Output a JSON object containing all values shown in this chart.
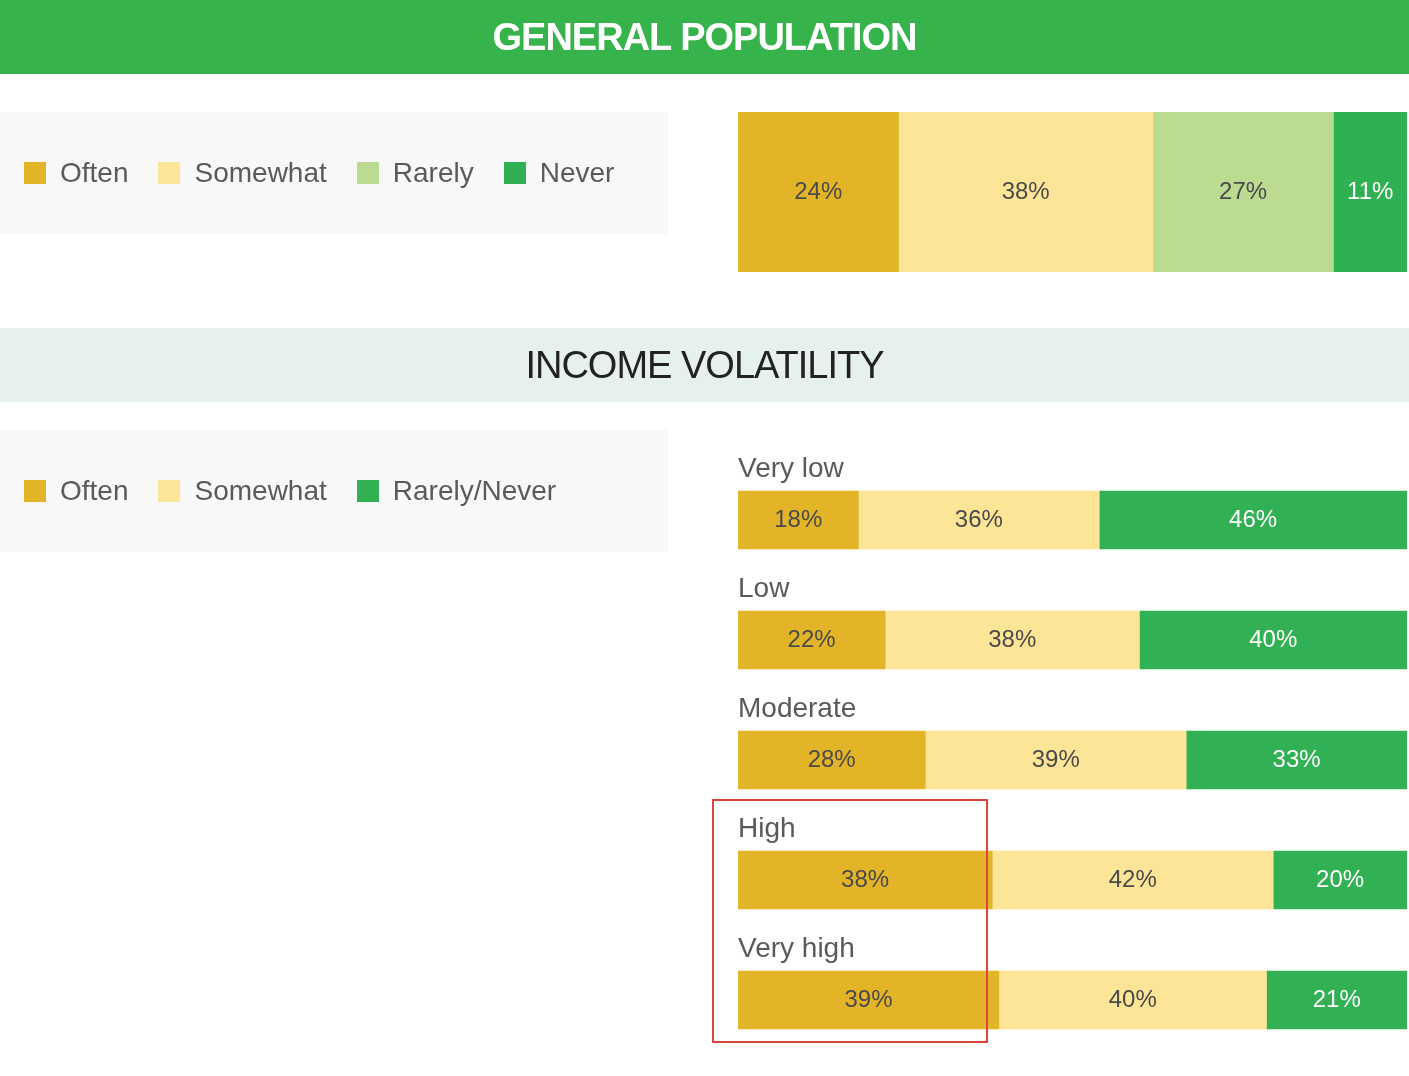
{
  "chart_data": [
    {
      "type": "bar",
      "title": "GENERAL POPULATION",
      "orientation": "horizontal",
      "stacked": true,
      "legend": "left",
      "tick_labels": false,
      "categories": [
        null
      ],
      "series": [
        {
          "name": "Often",
          "color": "#e3b427",
          "values": [
            24
          ],
          "value_labels": [
            "24%"
          ]
        },
        {
          "name": "Somewhat",
          "color": "#fce597",
          "values": [
            38
          ],
          "value_labels": [
            "38%"
          ]
        },
        {
          "name": "Rarely",
          "color": "#bbdb91",
          "values": [
            27
          ],
          "value_labels": [
            "27%"
          ]
        },
        {
          "name": "Never",
          "color": "#2fb052",
          "values": [
            11
          ],
          "value_labels": [
            "11%"
          ]
        }
      ]
    },
    {
      "type": "bar",
      "title": "INCOME VOLATILITY",
      "orientation": "horizontal",
      "stacked": true,
      "legend": "left",
      "tick_labels": "y",
      "categories": [
        "Very low",
        "Low",
        "Moderate",
        "High",
        "Very high"
      ],
      "series": [
        {
          "name": "Often",
          "color": "#e3b427",
          "values": [
            18,
            22,
            28,
            38,
            39
          ],
          "value_labels": [
            "18%",
            "22%",
            "28%",
            "38%",
            "39%"
          ]
        },
        {
          "name": "Somewhat",
          "color": "#fce597",
          "values": [
            36,
            38,
            39,
            42,
            40
          ],
          "value_labels": [
            "36%",
            "38%",
            "39%",
            "42%",
            "40%"
          ]
        },
        {
          "name": "Rarely/Never",
          "color": "#31b153",
          "values": [
            46,
            40,
            33,
            20,
            21
          ],
          "value_labels": [
            "46%",
            "40%",
            "33%",
            "20%",
            "21%"
          ]
        }
      ]
    }
  ]
}
